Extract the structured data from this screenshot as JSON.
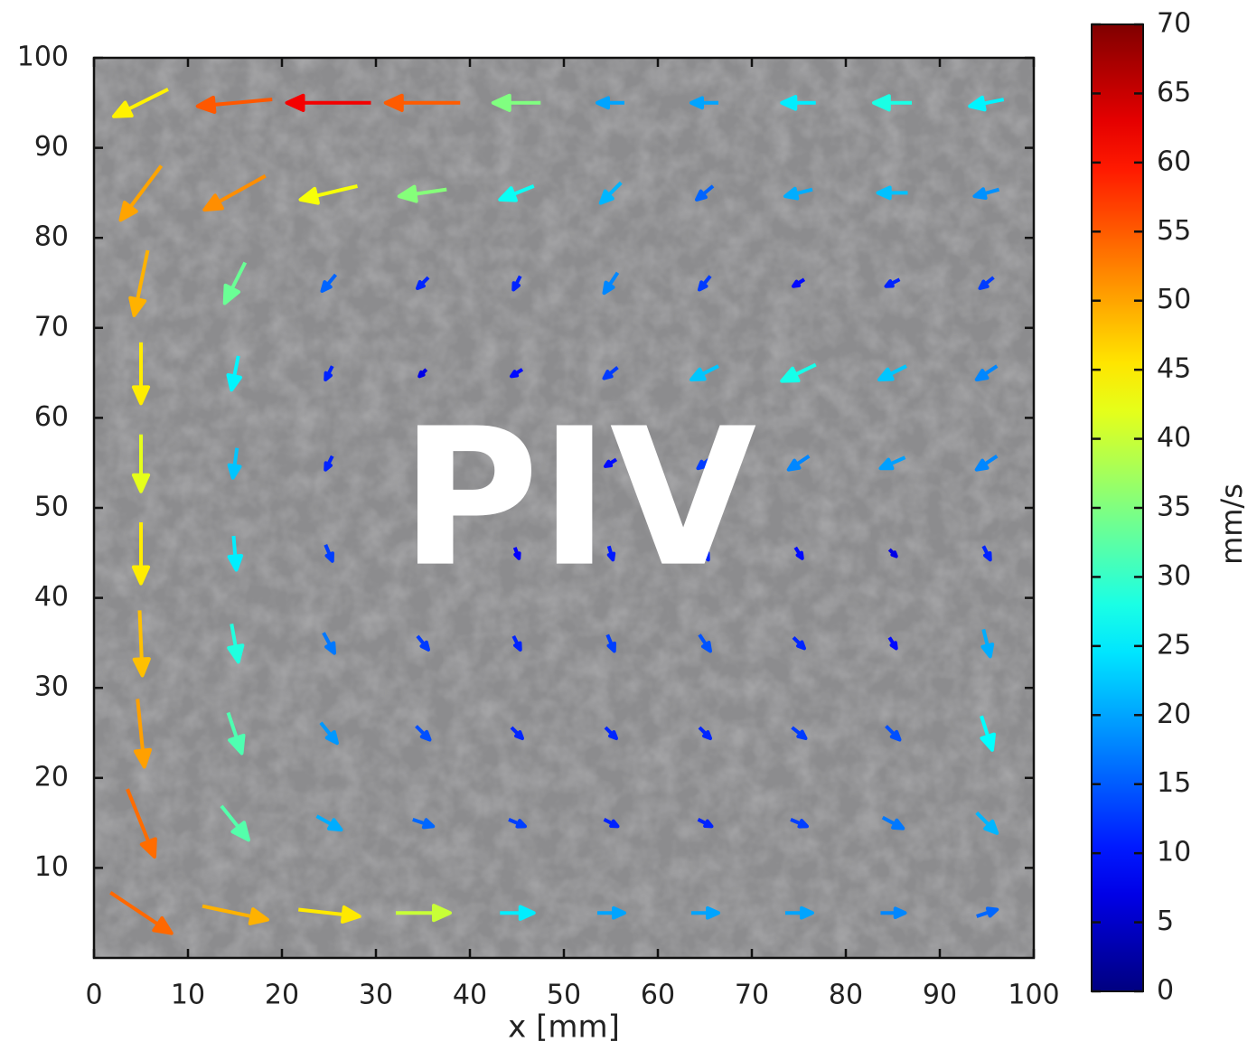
{
  "chart_data": {
    "type": "quiver",
    "annotation": "PIV",
    "xlabel": "x [mm]",
    "colorbar_label": "mm/s",
    "xlim": [
      0,
      100
    ],
    "ylim": [
      0,
      100
    ],
    "xticks": [
      0,
      10,
      20,
      30,
      40,
      50,
      60,
      70,
      80,
      90,
      100
    ],
    "yticks": [
      10,
      20,
      30,
      40,
      50,
      60,
      70,
      80,
      90,
      100
    ],
    "clim": [
      0,
      70
    ],
    "cticks": [
      0,
      5,
      10,
      15,
      20,
      25,
      30,
      35,
      40,
      45,
      50,
      55,
      60,
      65,
      70
    ],
    "colormap": "jet",
    "x": [
      5,
      15,
      25,
      35,
      45,
      55,
      65,
      75,
      85,
      95
    ],
    "y": [
      95,
      85,
      75,
      65,
      55,
      45,
      35,
      25,
      15,
      5
    ],
    "u": [
      [
        -40,
        -55,
        -62,
        -55,
        -35,
        -20,
        -20,
        -25,
        -28,
        -25
      ],
      [
        -30,
        -45,
        -42,
        -35,
        -25,
        -15,
        -12,
        -20,
        -22,
        -18
      ],
      [
        -10,
        -15,
        -10,
        -8,
        -5,
        -10,
        -8,
        -8,
        -10,
        -10
      ],
      [
        0,
        -5,
        -5,
        -5,
        -8,
        -10,
        -20,
        -25,
        -20,
        -15
      ],
      [
        0,
        -3,
        -5,
        -5,
        -5,
        -8,
        -10,
        -15,
        -18,
        -15
      ],
      [
        0,
        2,
        5,
        5,
        3,
        3,
        5,
        5,
        5,
        5
      ],
      [
        2,
        5,
        8,
        8,
        5,
        5,
        8,
        8,
        5,
        5
      ],
      [
        5,
        10,
        12,
        10,
        8,
        8,
        8,
        10,
        10,
        8
      ],
      [
        20,
        20,
        18,
        15,
        12,
        10,
        10,
        12,
        15,
        15
      ],
      [
        45,
        48,
        45,
        40,
        25,
        20,
        20,
        20,
        18,
        15
      ]
    ],
    "v": [
      [
        -20,
        -5,
        0,
        0,
        0,
        0,
        0,
        0,
        0,
        -5
      ],
      [
        -40,
        -25,
        -10,
        -5,
        -10,
        -15,
        -10,
        -5,
        0,
        -5
      ],
      [
        -48,
        -30,
        -12,
        -8,
        -10,
        -15,
        -10,
        -5,
        -5,
        -8
      ],
      [
        -45,
        -25,
        -10,
        -5,
        -5,
        -8,
        -10,
        -12,
        -10,
        -10
      ],
      [
        -42,
        -22,
        -10,
        -5,
        -5,
        -5,
        -8,
        -10,
        -8,
        -10
      ],
      [
        -45,
        -25,
        -12,
        -8,
        -8,
        -10,
        -10,
        -8,
        -5,
        -10
      ],
      [
        -48,
        -28,
        -15,
        -10,
        -10,
        -12,
        -12,
        -8,
        -8,
        -20
      ],
      [
        -50,
        -30,
        -15,
        -10,
        -8,
        -8,
        -8,
        -8,
        -10,
        -25
      ],
      [
        -50,
        -25,
        -10,
        -5,
        -5,
        -5,
        -5,
        -5,
        -8,
        -15
      ],
      [
        -30,
        -10,
        -5,
        0,
        0,
        0,
        0,
        0,
        0,
        5
      ]
    ]
  }
}
